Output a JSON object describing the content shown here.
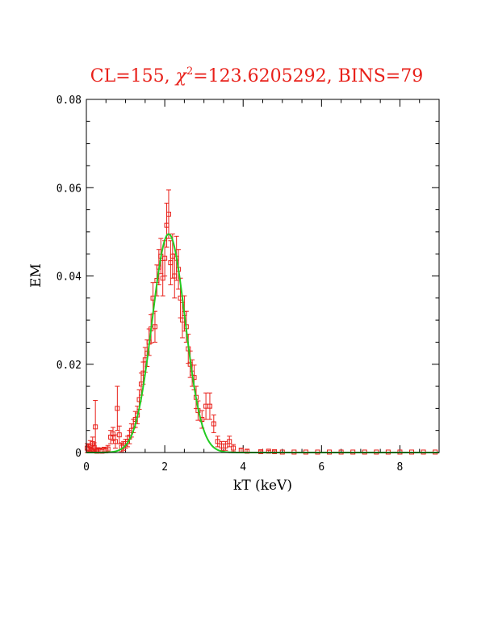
{
  "chart_data": {
    "type": "scatter",
    "title_parts": {
      "prefix": "CL=155,  ",
      "chi": "χ",
      "sup": "2",
      "rest": "=123.6205292,  BINS=79"
    },
    "xlabel": "kT (keV)",
    "ylabel": "EM",
    "xlim": [
      0,
      9
    ],
    "ylim": [
      0,
      0.08
    ],
    "x_ticks": [
      0,
      2,
      4,
      6,
      8
    ],
    "x_tick_labels": [
      "0",
      "2",
      "4",
      "6",
      "8"
    ],
    "y_ticks": [
      0,
      0.02,
      0.04,
      0.06,
      0.08
    ],
    "y_tick_labels": [
      "0",
      "0.02",
      "0.04",
      "0.06",
      "0.08"
    ],
    "grid": false,
    "colors": {
      "data": "#e8201a",
      "model": "#22cc22",
      "title": "#e8201a",
      "axes": "#000000"
    },
    "series": [
      {
        "role": "data-with-errors",
        "points": [
          [
            0.02,
            0.001,
            0.001
          ],
          [
            0.06,
            0.0008,
            0.001
          ],
          [
            0.1,
            0.0015,
            0.0012
          ],
          [
            0.13,
            0.0005,
            0.0008
          ],
          [
            0.16,
            0.002,
            0.0015
          ],
          [
            0.2,
            0.0012,
            0.001
          ],
          [
            0.23,
            0.0058,
            0.006
          ],
          [
            0.27,
            0.0003,
            0.0005
          ],
          [
            0.3,
            0.0005,
            0.0006
          ],
          [
            0.35,
            0.0004,
            0.0006
          ],
          [
            0.4,
            0.0003,
            0.0004
          ],
          [
            0.45,
            0.0006,
            0.0006
          ],
          [
            0.5,
            0.0004,
            0.0005
          ],
          [
            0.55,
            0.0008,
            0.0008
          ],
          [
            0.62,
            0.0035,
            0.0015
          ],
          [
            0.68,
            0.0042,
            0.0015
          ],
          [
            0.74,
            0.0025,
            0.0015
          ],
          [
            0.79,
            0.01,
            0.005
          ],
          [
            0.84,
            0.004,
            0.002
          ],
          [
            0.9,
            0.0012,
            0.001
          ],
          [
            0.95,
            0.0015,
            0.001
          ],
          [
            1.0,
            0.002,
            0.001
          ],
          [
            1.05,
            0.0025,
            0.0012
          ],
          [
            1.1,
            0.0035,
            0.0015
          ],
          [
            1.15,
            0.005,
            0.0015
          ],
          [
            1.2,
            0.006,
            0.0015
          ],
          [
            1.25,
            0.0075,
            0.0018
          ],
          [
            1.3,
            0.0085,
            0.002
          ],
          [
            1.35,
            0.012,
            0.0022
          ],
          [
            1.4,
            0.0155,
            0.0025
          ],
          [
            1.45,
            0.018,
            0.0025
          ],
          [
            1.5,
            0.021,
            0.0028
          ],
          [
            1.55,
            0.0225,
            0.003
          ],
          [
            1.6,
            0.025,
            0.003
          ],
          [
            1.65,
            0.028,
            0.0032
          ],
          [
            1.7,
            0.035,
            0.0035
          ],
          [
            1.75,
            0.0285,
            0.0035
          ],
          [
            1.8,
            0.039,
            0.0035
          ],
          [
            1.85,
            0.042,
            0.004
          ],
          [
            1.9,
            0.0445,
            0.004
          ],
          [
            1.95,
            0.0395,
            0.004
          ],
          [
            2.0,
            0.044,
            0.004
          ],
          [
            2.05,
            0.0515,
            0.005
          ],
          [
            2.1,
            0.054,
            0.0055
          ],
          [
            2.15,
            0.043,
            0.005
          ],
          [
            2.2,
            0.0445,
            0.005
          ],
          [
            2.25,
            0.04,
            0.005
          ],
          [
            2.3,
            0.044,
            0.005
          ],
          [
            2.35,
            0.0415,
            0.0045
          ],
          [
            2.4,
            0.035,
            0.0045
          ],
          [
            2.45,
            0.03,
            0.004
          ],
          [
            2.5,
            0.0315,
            0.004
          ],
          [
            2.55,
            0.0285,
            0.0035
          ],
          [
            2.6,
            0.0235,
            0.0033
          ],
          [
            2.65,
            0.02,
            0.003
          ],
          [
            2.7,
            0.018,
            0.003
          ],
          [
            2.75,
            0.017,
            0.0028
          ],
          [
            2.8,
            0.0125,
            0.0025
          ],
          [
            2.85,
            0.0095,
            0.0022
          ],
          [
            2.95,
            0.0075,
            0.002
          ],
          [
            3.05,
            0.0105,
            0.003
          ],
          [
            3.15,
            0.0105,
            0.003
          ],
          [
            3.25,
            0.0065,
            0.002
          ],
          [
            3.35,
            0.0025,
            0.0012
          ],
          [
            3.45,
            0.0015,
            0.001
          ],
          [
            3.55,
            0.0015,
            0.001
          ],
          [
            3.65,
            0.0025,
            0.0012
          ],
          [
            3.75,
            0.001,
            0.0008
          ],
          [
            3.95,
            0.0005,
            0.0005
          ],
          [
            4.1,
            0.0003,
            0.0004
          ],
          [
            4.45,
            0.0002,
            0.0002
          ],
          [
            4.65,
            0.0003,
            0.0002
          ],
          [
            4.8,
            0.0002,
            0.0002
          ],
          [
            5.0,
            0.0001,
            0
          ],
          [
            5.3,
            0.0001,
            0
          ],
          [
            5.6,
            0.0001,
            0
          ],
          [
            5.9,
            0.0001,
            0
          ],
          [
            6.2,
            0.0001,
            0
          ],
          [
            6.5,
            0.0001,
            0
          ],
          [
            6.8,
            0.0001,
            0
          ],
          [
            7.1,
            0.0001,
            0
          ],
          [
            7.4,
            0.0001,
            0
          ],
          [
            7.7,
            0.0001,
            0
          ],
          [
            8.0,
            0.0001,
            0
          ],
          [
            8.3,
            0.0001,
            0
          ],
          [
            8.6,
            0.0001,
            0
          ],
          [
            8.9,
            0.0001,
            0
          ]
        ]
      },
      {
        "role": "model-curve",
        "gaussian": {
          "amplitude": 0.0495,
          "center": 2.1,
          "sigma": 0.42
        }
      }
    ]
  }
}
